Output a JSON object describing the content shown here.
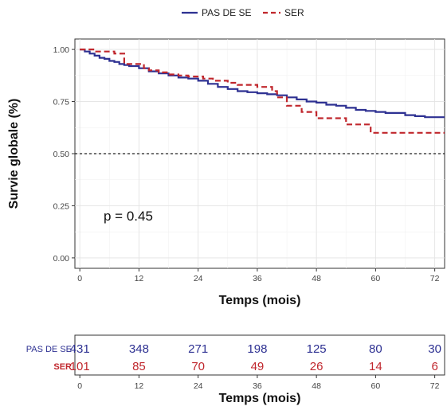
{
  "chart_data": {
    "type": "line",
    "xlabel": "Temps (mois)",
    "ylabel": "Survie globale (%)",
    "xlim": [
      -1,
      74
    ],
    "ylim": [
      -0.05,
      1.05
    ],
    "x_ticks": [
      0,
      12,
      24,
      36,
      48,
      60,
      72
    ],
    "y_ticks": [
      0.0,
      0.25,
      0.5,
      0.75,
      1.0
    ],
    "y_tick_labels": [
      "0.00",
      "0.25",
      "0.50",
      "0.75",
      "1.00"
    ],
    "grid": true,
    "legend_position": "top",
    "reference_line": {
      "y": 0.5,
      "style": "dotted"
    },
    "annotation": "p = 0.45",
    "series": [
      {
        "name": "PAS DE SE",
        "color": "#2e3192",
        "dash": "solid",
        "x": [
          0,
          1,
          2,
          3,
          4,
          5,
          6,
          7,
          8,
          9,
          10,
          12,
          14,
          16,
          18,
          20,
          22,
          24,
          26,
          28,
          30,
          32,
          34,
          36,
          38,
          40,
          42,
          44,
          46,
          48,
          50,
          52,
          54,
          56,
          58,
          60,
          62,
          64,
          66,
          68,
          70,
          72,
          74
        ],
        "y": [
          1.0,
          0.99,
          0.98,
          0.97,
          0.96,
          0.955,
          0.945,
          0.94,
          0.93,
          0.925,
          0.92,
          0.91,
          0.895,
          0.885,
          0.875,
          0.865,
          0.86,
          0.85,
          0.835,
          0.82,
          0.81,
          0.8,
          0.795,
          0.79,
          0.785,
          0.78,
          0.77,
          0.76,
          0.75,
          0.745,
          0.735,
          0.73,
          0.72,
          0.71,
          0.705,
          0.7,
          0.695,
          0.695,
          0.685,
          0.68,
          0.675,
          0.675,
          0.675
        ]
      },
      {
        "name": "SER",
        "color": "#c0272d",
        "dash": "dashed",
        "x": [
          0,
          2,
          3,
          5,
          7,
          8,
          9,
          11,
          13,
          14,
          16,
          18,
          20,
          22,
          25,
          27,
          30,
          32,
          36,
          39,
          40,
          42,
          45,
          48,
          51,
          54,
          58,
          59,
          63,
          67,
          74
        ],
        "y": [
          1.0,
          1.0,
          0.99,
          0.99,
          0.98,
          0.98,
          0.93,
          0.93,
          0.91,
          0.9,
          0.89,
          0.88,
          0.875,
          0.87,
          0.86,
          0.85,
          0.84,
          0.83,
          0.82,
          0.8,
          0.77,
          0.73,
          0.7,
          0.67,
          0.67,
          0.64,
          0.64,
          0.6,
          0.6,
          0.6,
          0.6
        ]
      }
    ]
  },
  "risk_table": {
    "xlabel": "Temps (mois)",
    "x_ticks": [
      0,
      12,
      24,
      36,
      48,
      60,
      72
    ],
    "rows": [
      {
        "label": "PAS DE SE",
        "color": "#2e3192",
        "counts": [
          "431",
          "348",
          "271",
          "198",
          "125",
          "80",
          "30"
        ]
      },
      {
        "label": "SER",
        "color": "#c0272d",
        "counts": [
          "101",
          "85",
          "70",
          "49",
          "26",
          "14",
          "6"
        ]
      }
    ]
  }
}
